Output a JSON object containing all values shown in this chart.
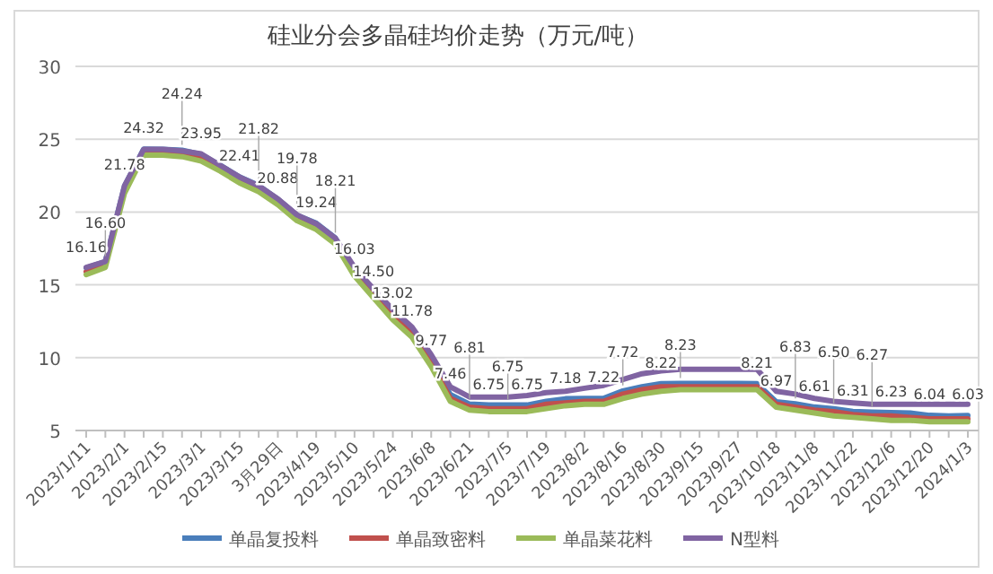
{
  "chart_data": {
    "type": "line",
    "title": "硅业分会多晶硅均价走势（万元/吨）",
    "categories": [
      "2023/1/11",
      null,
      "2023/2/1",
      null,
      "2023/2/15",
      null,
      "2023/3/1",
      null,
      "2023/3/15",
      null,
      "3月29日",
      null,
      "2023/4/19",
      null,
      "2023/5/10",
      null,
      "2023/5/24",
      null,
      "2023/6/8",
      null,
      "2023/6/21",
      null,
      "2023/7/5",
      null,
      "2023/7/19",
      null,
      "2023/8/2",
      null,
      "2023/8/16",
      null,
      "2023/8/30",
      null,
      "2023/9/15",
      null,
      "2023/9/27",
      null,
      "2023/10/18",
      null,
      "2023/11/8",
      null,
      "2023/11/22",
      null,
      "2023/12/6",
      null,
      "2023/12/20",
      null,
      "2024/1/3"
    ],
    "series": [
      {
        "name": "单晶复投料",
        "color": "#4a7ebb",
        "values": [
          16.16,
          16.6,
          21.78,
          24.32,
          24.3,
          24.24,
          23.95,
          23.2,
          22.41,
          21.82,
          20.88,
          19.78,
          19.24,
          18.21,
          16.03,
          14.5,
          13.02,
          11.78,
          9.77,
          7.46,
          6.81,
          6.75,
          6.75,
          6.75,
          7.0,
          7.18,
          7.2,
          7.22,
          7.72,
          8.0,
          8.22,
          8.23,
          8.23,
          8.23,
          8.23,
          8.21,
          6.97,
          6.83,
          6.61,
          6.5,
          6.31,
          6.27,
          6.23,
          6.2,
          6.04,
          6.0,
          6.03
        ],
        "value_labels": [
          "16.16",
          "16.60",
          "21.78",
          "24.32",
          null,
          "24.24",
          "23.95",
          null,
          "22.41",
          "21.82",
          "20.88",
          "19.78",
          "19.24",
          "18.21",
          "16.03",
          "14.50",
          "13.02",
          "11.78",
          "9.77",
          "7.46",
          "6.81",
          "6.75",
          "6.75",
          "6.75",
          null,
          "7.18",
          null,
          "7.22",
          "7.72",
          null,
          "8.22",
          "8.23",
          null,
          null,
          null,
          "8.21",
          "6.97",
          "6.83",
          "6.61",
          "6.50",
          "6.31",
          "6.27",
          "6.23",
          null,
          "6.04",
          null,
          "6.03"
        ]
      },
      {
        "name": "单晶致密料",
        "color": "#c0504d",
        "values": [
          15.9,
          16.4,
          21.5,
          24.1,
          24.1,
          24.0,
          23.7,
          23.0,
          22.2,
          21.6,
          20.7,
          19.6,
          19.0,
          18.0,
          15.8,
          14.3,
          12.8,
          11.6,
          9.6,
          7.2,
          6.6,
          6.5,
          6.5,
          6.5,
          6.8,
          6.9,
          7.0,
          7.0,
          7.5,
          7.8,
          8.0,
          8.0,
          8.0,
          8.0,
          8.0,
          8.0,
          6.8,
          6.6,
          6.4,
          6.3,
          6.1,
          6.0,
          6.0,
          5.9,
          5.8,
          5.8,
          5.8
        ]
      },
      {
        "name": "单晶菜花料",
        "color": "#9bbb59",
        "values": [
          15.7,
          16.2,
          21.3,
          23.9,
          23.9,
          23.8,
          23.5,
          22.8,
          22.0,
          21.4,
          20.5,
          19.4,
          18.8,
          17.8,
          15.6,
          14.1,
          12.6,
          11.4,
          9.4,
          7.0,
          6.4,
          6.3,
          6.3,
          6.3,
          6.5,
          6.7,
          6.8,
          6.8,
          7.2,
          7.5,
          7.7,
          7.8,
          7.8,
          7.8,
          7.8,
          7.8,
          6.6,
          6.4,
          6.2,
          6.0,
          5.9,
          5.8,
          5.7,
          5.7,
          5.6,
          5.6,
          5.6
        ]
      },
      {
        "name": "N型料",
        "color": "#8064a2",
        "values": [
          16.2,
          16.6,
          21.8,
          24.3,
          24.3,
          24.2,
          24.0,
          23.2,
          22.4,
          21.8,
          20.9,
          19.8,
          19.2,
          18.2,
          16.2,
          14.7,
          13.3,
          12.1,
          10.2,
          8.0,
          7.3,
          7.3,
          7.3,
          7.4,
          7.6,
          7.7,
          7.9,
          8.1,
          8.5,
          8.9,
          9.1,
          9.2,
          9.2,
          9.2,
          9.2,
          9.2,
          7.7,
          7.5,
          7.2,
          7.0,
          6.9,
          6.8,
          6.8,
          6.8,
          6.8,
          6.8,
          6.8
        ]
      }
    ],
    "ylim": [
      5,
      30
    ],
    "yticks": [
      5,
      10,
      15,
      20,
      25,
      30
    ],
    "grid": "y",
    "legend": "bottom",
    "marker": "none",
    "line_style": "solid"
  }
}
